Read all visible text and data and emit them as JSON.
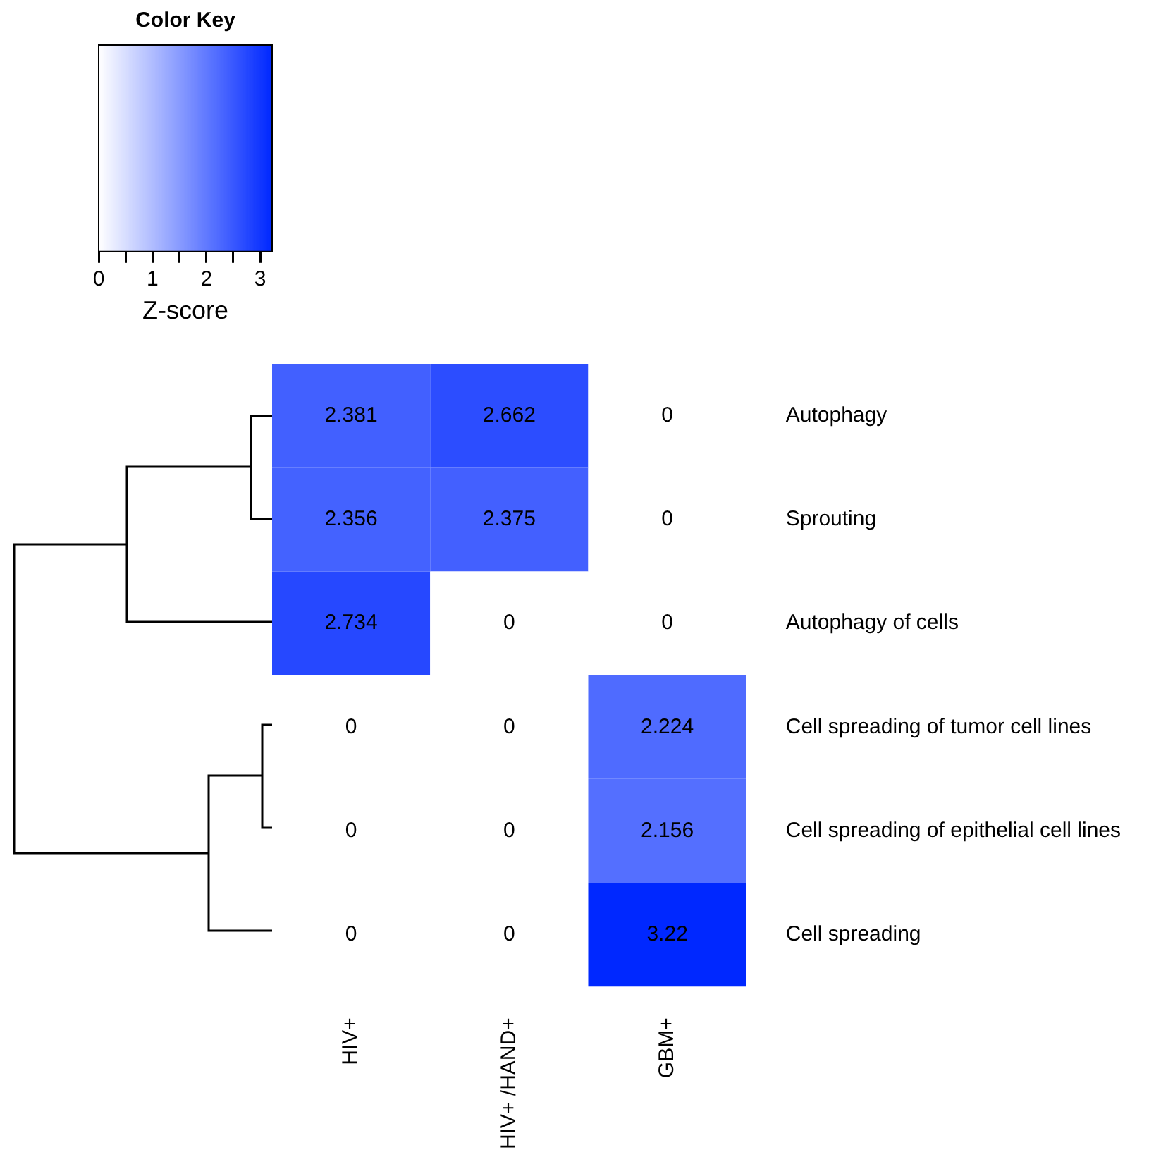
{
  "chart_data": {
    "type": "heatmap",
    "title": "Color Key",
    "clabel": "Z-score",
    "categories": [
      "HIV+",
      "HIV+ /HAND+",
      "GBM+"
    ],
    "y_categories": [
      "Autophagy",
      "Sprouting",
      "Autophagy of cells",
      "Cell spreading of tumor cell lines",
      "Cell spreading of epithelial cell lines",
      "Cell spreading"
    ],
    "cells": [
      [
        2.381,
        2.662,
        0
      ],
      [
        2.356,
        2.375,
        0
      ],
      [
        2.734,
        0,
        0
      ],
      [
        0,
        0,
        2.224
      ],
      [
        0,
        0,
        2.156
      ],
      [
        0,
        0,
        3.22
      ]
    ],
    "colors": [
      "#ffffff",
      "#0028ff"
    ],
    "clim": [
      0,
      3.22
    ],
    "cticks": [
      0,
      {
        "value": 0.5,
        "label": null
      },
      1,
      {
        "value": 1.5,
        "label": null
      },
      2,
      {
        "value": 2.5,
        "label": null
      },
      3
    ],
    "data_labels": true
  }
}
